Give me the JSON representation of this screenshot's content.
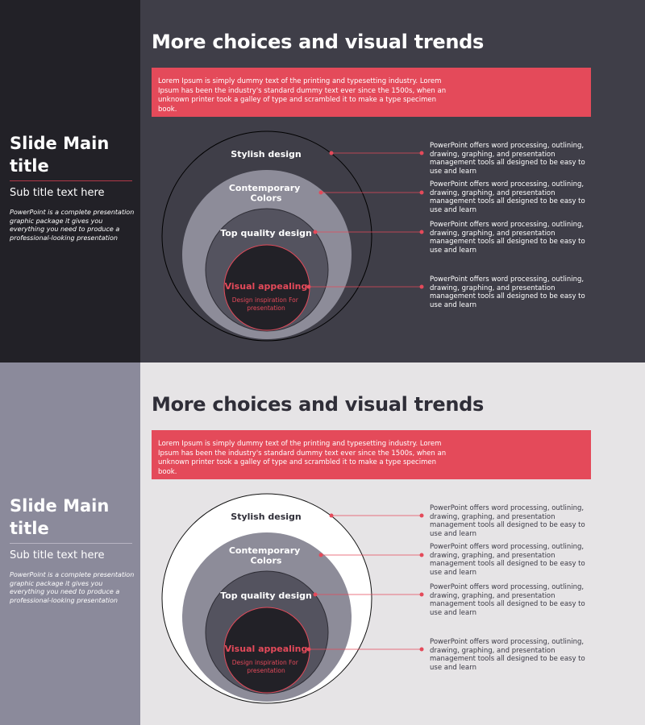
{
  "colors": {
    "accent": "#e44a5a",
    "dark_bg": "#3f3e48",
    "dark_sidebar": "#222127",
    "light_bg": "#e6e4e6",
    "light_sidebar": "#8b8a9b"
  },
  "slides": [
    {
      "theme": "dark",
      "sidebar": {
        "title": "Slide Main title",
        "subtitle": "Sub title text here",
        "description": "PowerPoint is a complete presentation graphic package it gives you everything you need to produce a professional-looking presentation"
      },
      "main_title": "More choices and visual trends",
      "banner_text": "Lorem Ipsum is simply dummy text of the printing and typesetting industry. Lorem Ipsum has been the industry's standard dummy text ever since the 1500s, when an unknown printer took a galley of type and scrambled it to make a type specimen book.",
      "levels": [
        {
          "label_lines": [
            "Stylish design"
          ],
          "description": "PowerPoint offers word processing, outlining, drawing, graphing, and presentation management tools all designed to be easy to use and learn"
        },
        {
          "label_lines": [
            "Contemporary",
            "Colors"
          ],
          "description": "PowerPoint offers word processing, outlining, drawing, graphing, and presentation management tools all designed to be easy to use and learn"
        },
        {
          "label_lines": [
            "Top quality design"
          ],
          "description": "PowerPoint offers word processing, outlining, drawing, graphing, and presentation management tools all designed to be easy to use and learn"
        },
        {
          "label_lines": [
            "Visual appealing"
          ],
          "sub_lines": [
            "Design inspiration For",
            "presentation"
          ],
          "description": "PowerPoint offers word processing, outlining, drawing, graphing, and presentation management tools all designed to be easy to use and learn"
        }
      ]
    },
    {
      "theme": "light",
      "sidebar": {
        "title": "Slide Main title",
        "subtitle": "Sub title text here",
        "description": "PowerPoint is a complete presentation graphic package it gives you everything you need to produce a professional-looking presentation"
      },
      "main_title": "More choices and visual trends",
      "banner_text": "Lorem Ipsum is simply dummy text of the printing and typesetting industry. Lorem Ipsum has been the industry's standard dummy text ever since the 1500s, when an unknown printer took a galley of type and scrambled it to make a type specimen book.",
      "levels": [
        {
          "label_lines": [
            "Stylish design"
          ],
          "description": "PowerPoint offers word processing, outlining, drawing, graphing, and presentation management tools all designed to be easy to use and learn"
        },
        {
          "label_lines": [
            "Contemporary",
            "Colors"
          ],
          "description": "PowerPoint offers word processing, outlining, drawing, graphing, and presentation management tools all designed to be easy to use and learn"
        },
        {
          "label_lines": [
            "Top quality design"
          ],
          "description": "PowerPoint offers word processing, outlining, drawing, graphing, and presentation management tools all designed to be easy to use and learn"
        },
        {
          "label_lines": [
            "Visual appealing"
          ],
          "sub_lines": [
            "Design inspiration For",
            "presentation"
          ],
          "description": "PowerPoint offers word processing, outlining, drawing, graphing, and presentation management tools all designed to be easy to use and learn"
        }
      ]
    }
  ]
}
